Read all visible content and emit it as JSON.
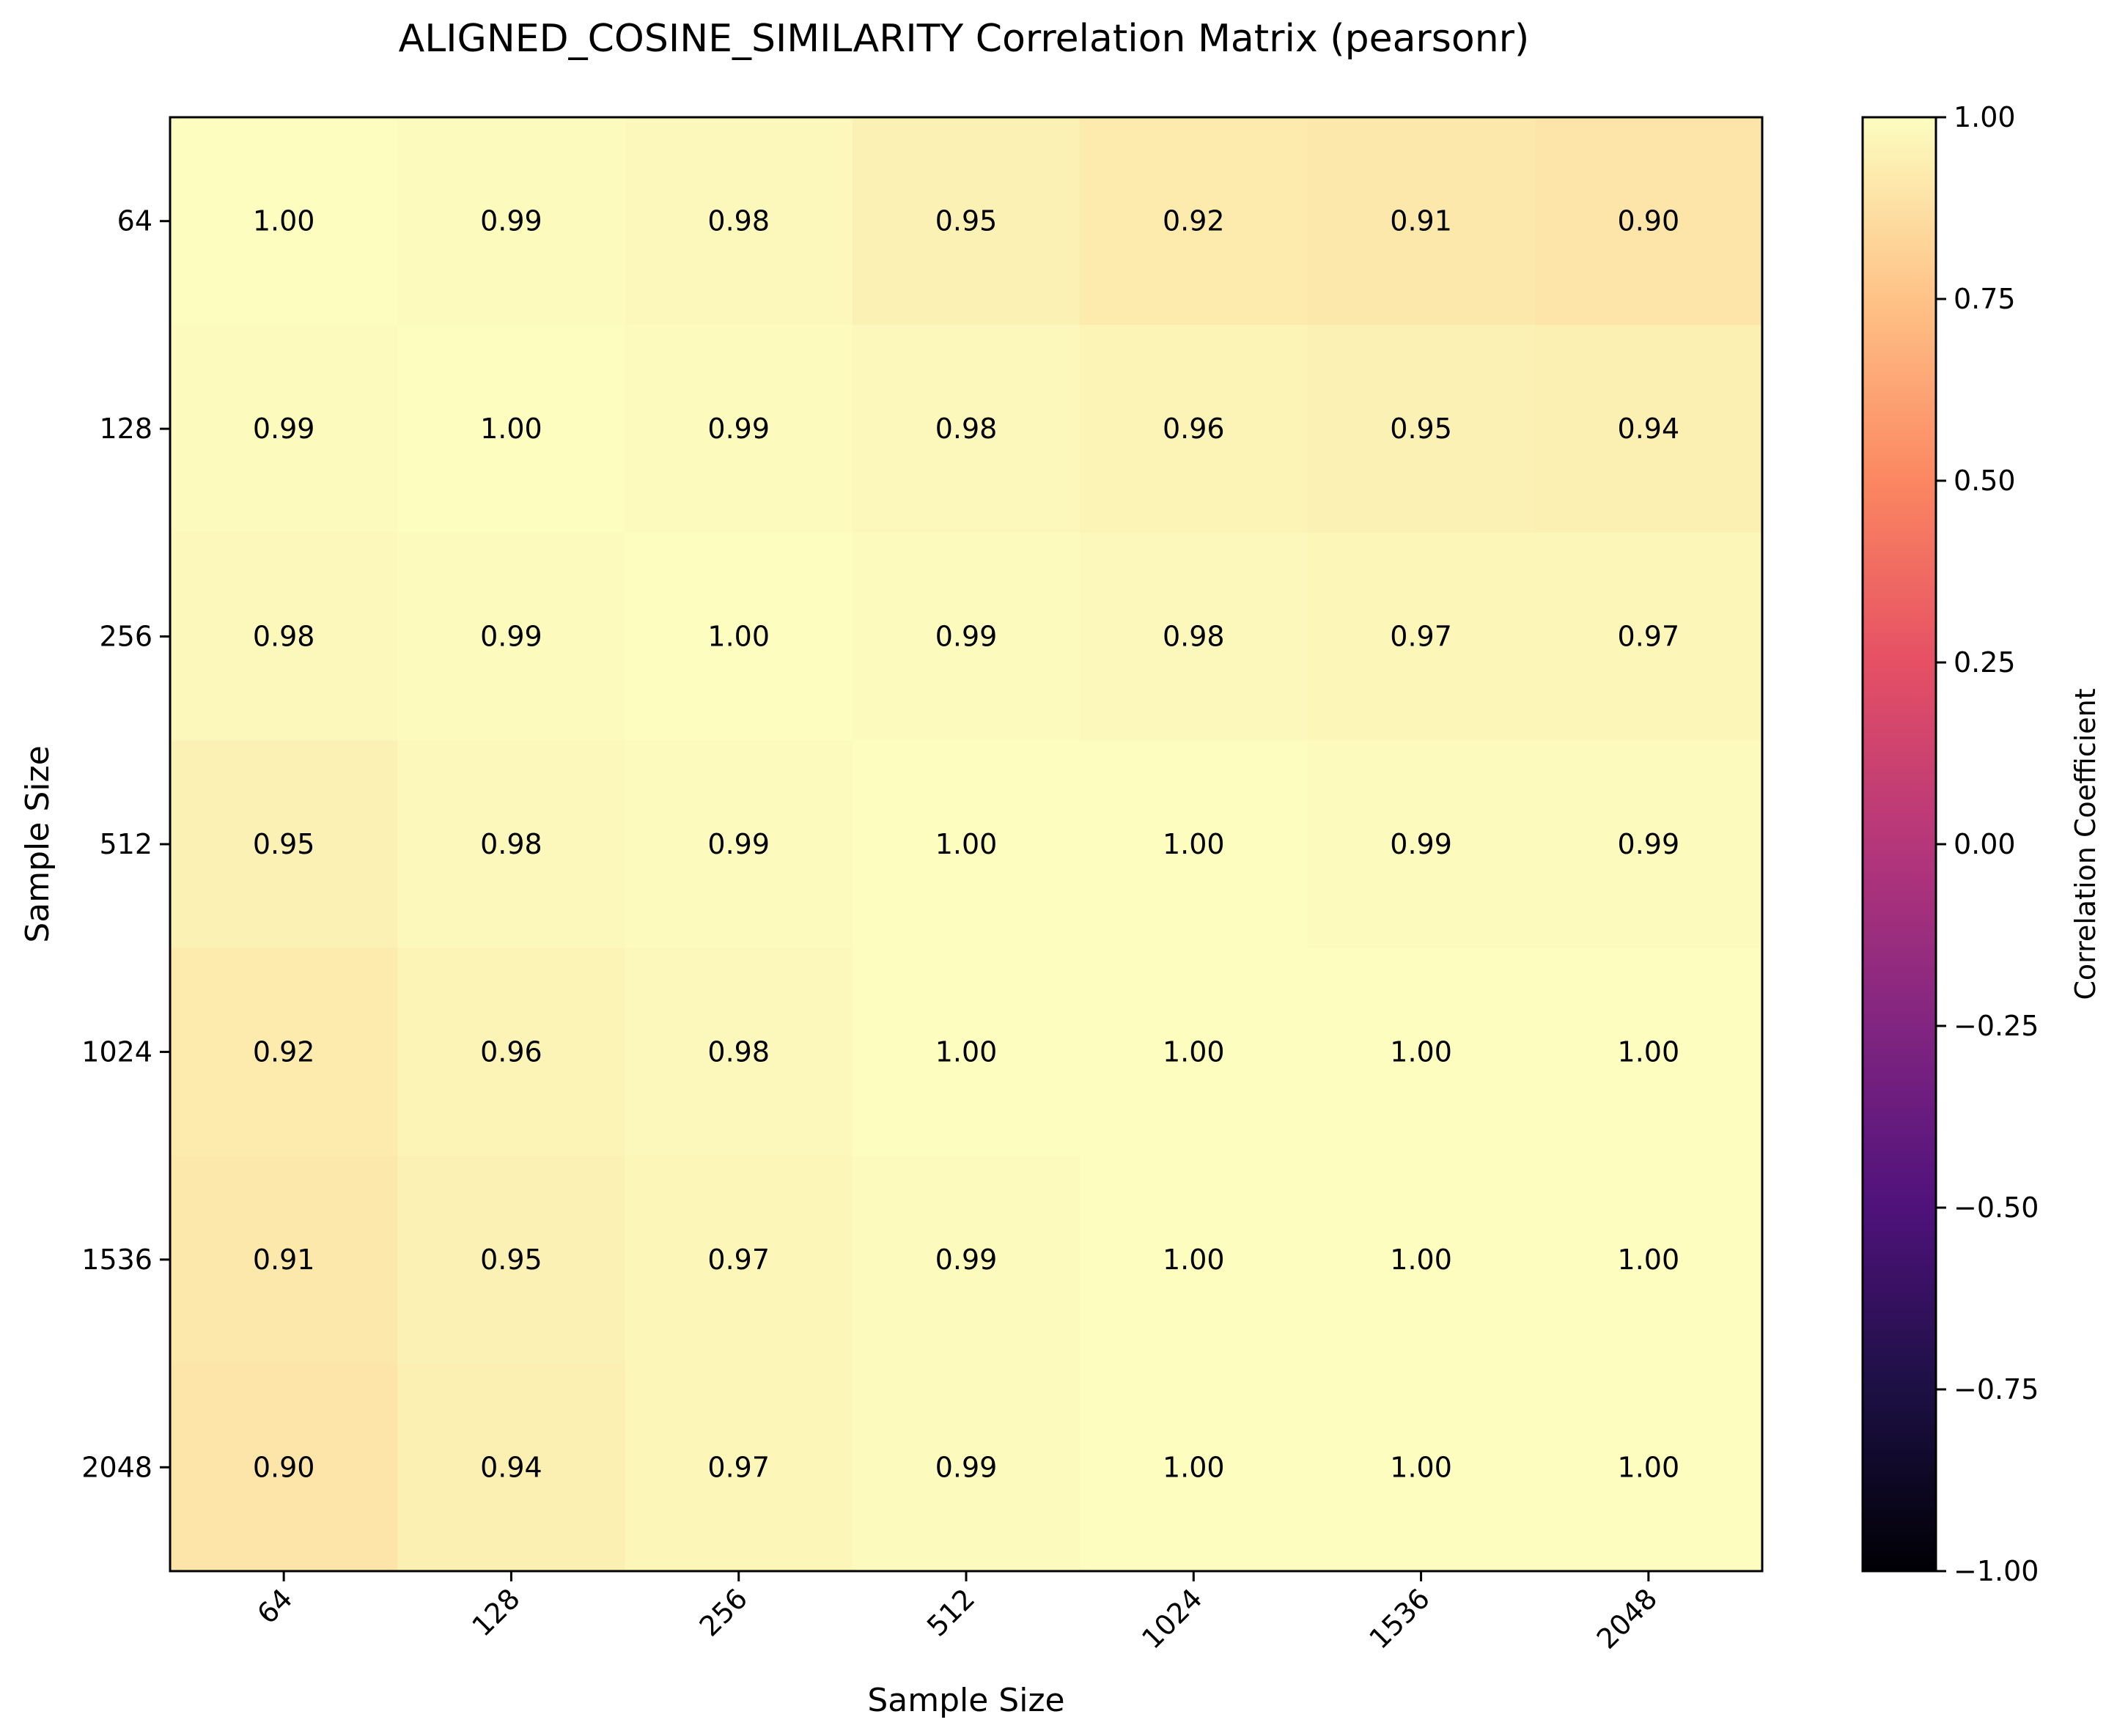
{
  "chart_data": {
    "type": "heatmap",
    "title": "ALIGNED_COSINE_SIMILARITY Correlation Matrix (pearsonr)",
    "xlabel": "Sample Size",
    "ylabel": "Sample Size",
    "x_categories": [
      "64",
      "128",
      "256",
      "512",
      "1024",
      "1536",
      "2048"
    ],
    "y_categories": [
      "64",
      "128",
      "256",
      "512",
      "1024",
      "1536",
      "2048"
    ],
    "values": [
      [
        1.0,
        0.99,
        0.98,
        0.95,
        0.92,
        0.91,
        0.9
      ],
      [
        0.99,
        1.0,
        0.99,
        0.98,
        0.96,
        0.95,
        0.94
      ],
      [
        0.98,
        0.99,
        1.0,
        0.99,
        0.98,
        0.97,
        0.97
      ],
      [
        0.95,
        0.98,
        0.99,
        1.0,
        1.0,
        0.99,
        0.99
      ],
      [
        0.92,
        0.96,
        0.98,
        1.0,
        1.0,
        1.0,
        1.0
      ],
      [
        0.91,
        0.95,
        0.97,
        0.99,
        1.0,
        1.0,
        1.0
      ],
      [
        0.9,
        0.94,
        0.97,
        0.99,
        1.0,
        1.0,
        1.0
      ]
    ],
    "value_format": "2 decimals",
    "colormap": "magma",
    "vmin": -1.0,
    "vmax": 1.0,
    "colorbar": {
      "label": "Correlation Coefficient",
      "ticks": [
        -1.0,
        -0.75,
        -0.5,
        -0.25,
        0.0,
        0.25,
        0.5,
        0.75,
        1.0
      ],
      "tick_labels": [
        "−1.00",
        "−0.75",
        "−0.50",
        "−0.25",
        "0.00",
        "0.25",
        "0.50",
        "0.75",
        "1.00"
      ],
      "placement": "right"
    },
    "grid": false,
    "x_tick_rotation_deg": 45
  }
}
